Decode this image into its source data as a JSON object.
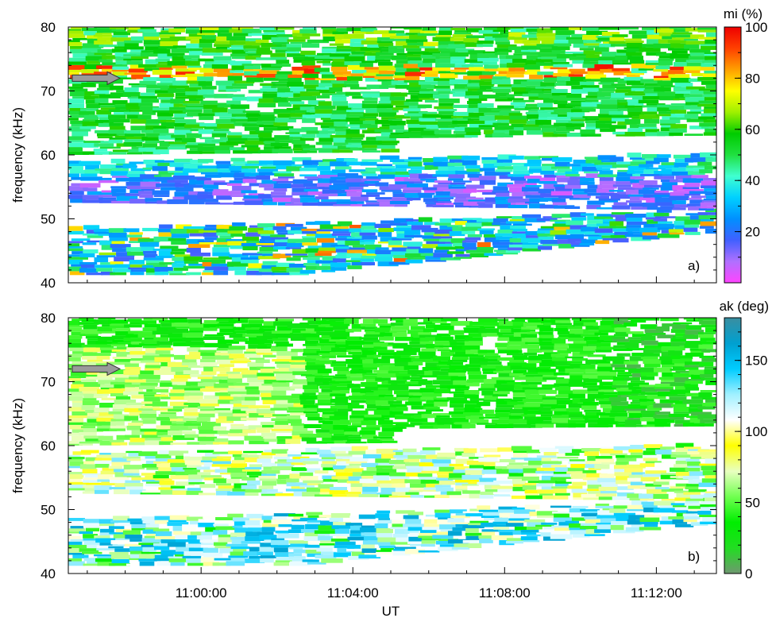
{
  "chart_data": [
    {
      "type": "heatmap",
      "panel_label": "a)",
      "ylabel": "frequency (kHz)",
      "xlabel": "",
      "x_ticks": [
        "11:00:00",
        "11:04:00",
        "11:08:00",
        "11:12:00"
      ],
      "x_range": [
        "10:56:30",
        "11:13:35"
      ],
      "ylim": [
        40,
        80
      ],
      "y_ticks": [
        40,
        50,
        60,
        70,
        80
      ],
      "colorbar": {
        "title": "mi (%)",
        "range": [
          0,
          100
        ],
        "ticks": [
          20,
          40,
          60,
          80,
          100
        ],
        "colorscale": [
          "#ff44ff",
          "#b070ff",
          "#4060ff",
          "#0090ff",
          "#00d0ff",
          "#40ffd0",
          "#20e040",
          "#00cc00",
          "#a0f000",
          "#ffff00",
          "#ffa000",
          "#ff4000",
          "#ee0000"
        ]
      },
      "arrow_at_khz": 72,
      "bands": [
        {
          "y_from": 62,
          "y_to": 80,
          "dominant": "cyan-green",
          "note": "upper emission band, yellow/red ridge near 72-73 kHz"
        },
        {
          "y_from": 52,
          "y_to": 60,
          "dominant": "blue-magenta",
          "note": "middle band with strong magenta"
        },
        {
          "y_from": 41,
          "y_to": 49,
          "dominant": "blue-cyan",
          "note": "lower band rising to ~50 kHz after 11:04"
        }
      ]
    },
    {
      "type": "heatmap",
      "panel_label": "b)",
      "ylabel": "frequency (kHz)",
      "xlabel": "UT",
      "x_ticks": [
        "11:00:00",
        "11:04:00",
        "11:08:00",
        "11:12:00"
      ],
      "x_range": [
        "10:56:30",
        "11:13:35"
      ],
      "ylim": [
        40,
        80
      ],
      "y_ticks": [
        40,
        50,
        60,
        70,
        80
      ],
      "colorbar": {
        "title": "ak (deg)",
        "range": [
          0,
          180
        ],
        "ticks": [
          0,
          50,
          100,
          150
        ],
        "colorscale": [
          "#6f9870",
          "#22dd22",
          "#00ee00",
          "#70ff50",
          "#e8ffc0",
          "#ffff00",
          "#ffffff",
          "#a0f0ff",
          "#00ccff",
          "#00a0d0",
          "#3a8ea0"
        ]
      },
      "arrow_at_khz": 72,
      "bands": [
        {
          "y_from": 62,
          "y_to": 80,
          "dominant": "green",
          "note": "pale yellow-green early, green later"
        },
        {
          "y_from": 52,
          "y_to": 60,
          "dominant": "green-cyan"
        },
        {
          "y_from": 41,
          "y_to": 49,
          "dominant": "cyan-blue"
        }
      ]
    }
  ]
}
